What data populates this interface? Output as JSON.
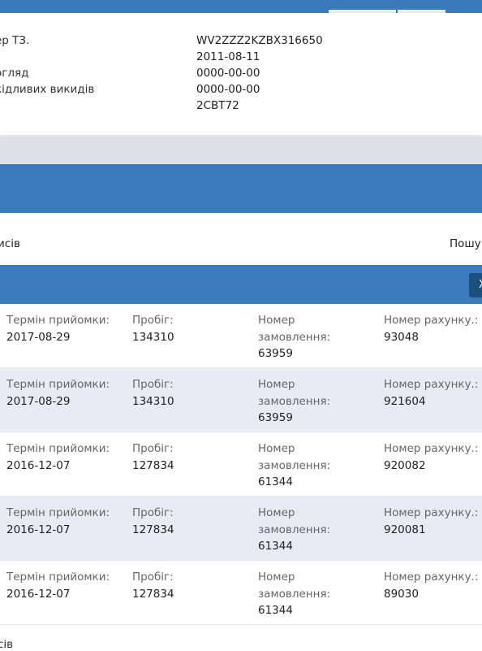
{
  "vehicle_info": {
    "rows": [
      {
        "label": "ер ТЗ.",
        "value": "WV2ZZZ2KZBX316650"
      },
      {
        "label": "",
        "value": "2011-08-11"
      },
      {
        "label": "огляд",
        "value": "0000-00-00"
      },
      {
        "label": "кідливих викидів",
        "value": "0000-00-00"
      },
      {
        "label": "",
        "value": "2CBT72"
      }
    ]
  },
  "list_bar": {
    "left_text": "исів",
    "right_text": "Пошук"
  },
  "table_header": {
    "button_label": "Х"
  },
  "records": [
    {
      "date_label": "Термін прийомки:",
      "date": "2017-08-29",
      "mileage_label": "Пробіг:",
      "mileage": "134310",
      "order_label_1": "Номер",
      "order_label_2": "замовлення:",
      "order": "63959",
      "invoice_label": "Номер рахунку.:",
      "invoice": "93048"
    },
    {
      "date_label": "Термін прийомки:",
      "date": "2017-08-29",
      "mileage_label": "Пробіг:",
      "mileage": "134310",
      "order_label_1": "Номер",
      "order_label_2": "замовлення:",
      "order": "63959",
      "invoice_label": "Номер рахунку.:",
      "invoice": "921604"
    },
    {
      "date_label": "Термін прийомки:",
      "date": "2016-12-07",
      "mileage_label": "Пробіг:",
      "mileage": "127834",
      "order_label_1": "Номер",
      "order_label_2": "замовлення:",
      "order": "61344",
      "invoice_label": "Номер рахунку.:",
      "invoice": "920082"
    },
    {
      "date_label": "Термін прийомки:",
      "date": "2016-12-07",
      "mileage_label": "Пробіг:",
      "mileage": "127834",
      "order_label_1": "Номер",
      "order_label_2": "замовлення:",
      "order": "61344",
      "invoice_label": "Номер рахунку.:",
      "invoice": "920081"
    },
    {
      "date_label": "Термін прийомки:",
      "date": "2016-12-07",
      "mileage_label": "Пробіг:",
      "mileage": "127834",
      "order_label_1": "Номер",
      "order_label_2": "замовлення:",
      "order": "61344",
      "invoice_label": "Номер рахунку.:",
      "invoice": "89030"
    }
  ],
  "footer": {
    "text": "сів"
  },
  "colors": {
    "primary": "#3b7bbb",
    "row_alt": "#e8ebf3",
    "button_dark": "#1d4f7c",
    "band_gray": "#dde1e5"
  }
}
